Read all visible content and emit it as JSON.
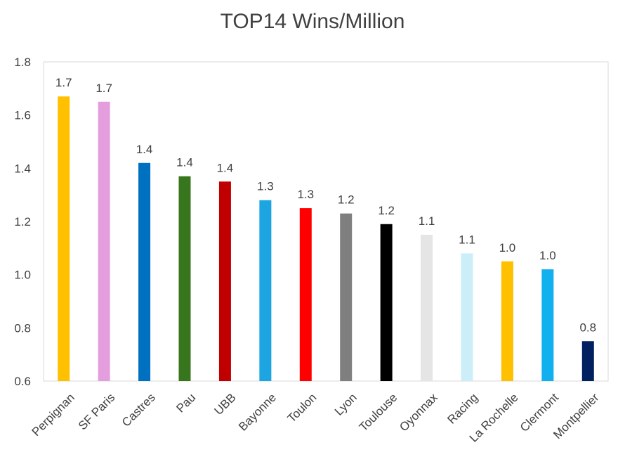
{
  "chart_data": {
    "type": "bar",
    "title": "TOP14 Wins/Million",
    "xlabel": "",
    "ylabel": "",
    "ylim": [
      0.6,
      1.8
    ],
    "yticks": [
      "0.6",
      "0.8",
      "1.0",
      "1.2",
      "1.4",
      "1.6",
      "1.8"
    ],
    "grid": false,
    "legend": "none",
    "categories": [
      "Perpignan",
      "SF Paris",
      "Castres",
      "Pau",
      "UBB",
      "Bayonne",
      "Toulon",
      "Lyon",
      "Toulouse",
      "Oyonnax",
      "Racing",
      "La Rochelle",
      "Clermont",
      "Montpellier"
    ],
    "values": [
      1.67,
      1.65,
      1.42,
      1.37,
      1.35,
      1.28,
      1.25,
      1.23,
      1.19,
      1.15,
      1.08,
      1.05,
      1.02,
      0.75
    ],
    "data_labels": [
      "1.7",
      "1.7",
      "1.4",
      "1.4",
      "1.4",
      "1.3",
      "1.3",
      "1.2",
      "1.2",
      "1.1",
      "1.1",
      "1.0",
      "1.0",
      "0.8"
    ],
    "colors": [
      "#FFC000",
      "#E49EDD",
      "#0070C0",
      "#38761D",
      "#C00000",
      "#1CA5E0",
      "#FF0000",
      "#7F7F7F",
      "#000000",
      "#E5E5E5",
      "#CCEEF8",
      "#FFC000",
      "#12B0EE",
      "#002060"
    ]
  }
}
